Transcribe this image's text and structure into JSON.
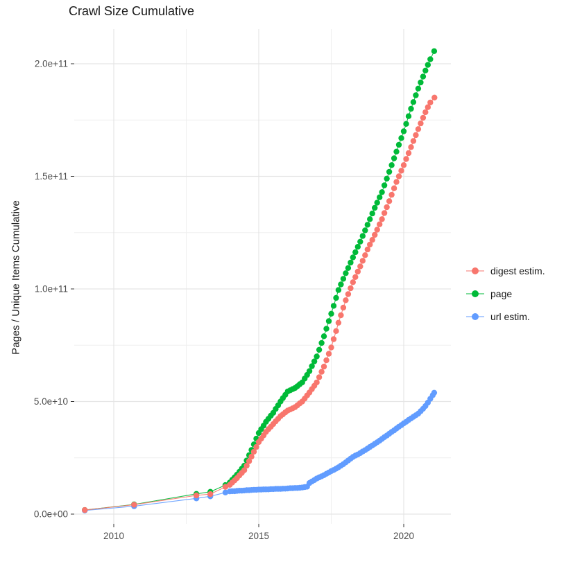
{
  "title": "Crawl Size Cumulative",
  "axes": {
    "y_title": "Pages / Unique Items Cumulative",
    "y_ticks": [
      {
        "label": "0.0e+00",
        "value": 0
      },
      {
        "label": "5.0e+10",
        "value": 50
      },
      {
        "label": "1.0e+11",
        "value": 100
      },
      {
        "label": "1.5e+11",
        "value": 150
      },
      {
        "label": "2.0e+11",
        "value": 200
      }
    ],
    "y_minor": [
      25,
      75,
      125,
      175
    ],
    "x_ticks": [
      {
        "label": "2010",
        "value": 2010
      },
      {
        "label": "2015",
        "value": 2015
      },
      {
        "label": "2020",
        "value": 2020
      }
    ],
    "x_minor": [
      2012.5,
      2017.5
    ]
  },
  "colors": {
    "digest": "#F8766D",
    "page": "#00BA38",
    "url": "#619CFF",
    "grid_major": "#E5E5E5",
    "grid_minor": "#EFEFEF",
    "tick": "#333333",
    "axis_text": "#4D4D4D"
  },
  "chart_data": {
    "type": "scatter",
    "title": "Crawl Size Cumulative",
    "xlabel": "",
    "ylabel": "Pages / Unique Items Cumulative",
    "x_unit": "year (decimal)",
    "y_unit": "count; stored values are billions (multiply by 1e9)",
    "xlim": [
      2008.6,
      2021.6
    ],
    "ylim": [
      0,
      215000000000.0
    ],
    "grid": true,
    "legend_position": "right",
    "point_style": "dot-with-thin-line",
    "series": [
      {
        "name": "digest estim.",
        "color": "#F8766D",
        "points": [
          [
            2009.0,
            1.8
          ],
          [
            2010.7,
            4.2
          ],
          [
            2012.85,
            8.3
          ],
          [
            2013.33,
            8.9
          ],
          [
            2013.85,
            12.1
          ],
          [
            2014.0,
            13.0
          ],
          [
            2014.083,
            14.0
          ],
          [
            2014.167,
            15.0
          ],
          [
            2014.25,
            16.0
          ],
          [
            2014.333,
            17.2
          ],
          [
            2014.417,
            18.3
          ],
          [
            2014.5,
            19.5
          ],
          [
            2014.583,
            21.5
          ],
          [
            2014.667,
            23.5
          ],
          [
            2014.75,
            25.5
          ],
          [
            2014.833,
            27.7
          ],
          [
            2014.917,
            29.8
          ],
          [
            2015.0,
            32.0
          ],
          [
            2015.083,
            33.5
          ],
          [
            2015.167,
            35.0
          ],
          [
            2015.25,
            36.5
          ],
          [
            2015.333,
            37.7
          ],
          [
            2015.417,
            38.8
          ],
          [
            2015.5,
            40.0
          ],
          [
            2015.583,
            41.2
          ],
          [
            2015.667,
            42.3
          ],
          [
            2015.75,
            43.5
          ],
          [
            2015.833,
            44.3
          ],
          [
            2015.917,
            45.2
          ],
          [
            2016.0,
            46.0
          ],
          [
            2016.083,
            46.5
          ],
          [
            2016.167,
            47.0
          ],
          [
            2016.25,
            47.5
          ],
          [
            2016.333,
            48.3
          ],
          [
            2016.417,
            49.2
          ],
          [
            2016.5,
            50.0
          ],
          [
            2016.583,
            51.3
          ],
          [
            2016.667,
            52.7
          ],
          [
            2016.75,
            54.0
          ],
          [
            2016.833,
            55.5
          ],
          [
            2016.917,
            57.0
          ],
          [
            2017.0,
            58.5
          ],
          [
            2017.083,
            60.8
          ],
          [
            2017.167,
            63.2
          ],
          [
            2017.25,
            65.5
          ],
          [
            2017.333,
            68.3
          ],
          [
            2017.417,
            71.2
          ],
          [
            2017.5,
            74.0
          ],
          [
            2017.583,
            77.7
          ],
          [
            2017.667,
            81.3
          ],
          [
            2017.75,
            85.0
          ],
          [
            2017.833,
            88.3
          ],
          [
            2017.917,
            91.7
          ],
          [
            2018.0,
            95.0
          ],
          [
            2018.083,
            97.7
          ],
          [
            2018.167,
            100.3
          ],
          [
            2018.25,
            103.0
          ],
          [
            2018.333,
            105.3
          ],
          [
            2018.417,
            107.7
          ],
          [
            2018.5,
            110.0
          ],
          [
            2018.583,
            112.5
          ],
          [
            2018.667,
            115.0
          ],
          [
            2018.75,
            117.5
          ],
          [
            2018.833,
            119.7
          ],
          [
            2018.917,
            121.8
          ],
          [
            2019.0,
            124.0
          ],
          [
            2019.083,
            126.3
          ],
          [
            2019.167,
            128.7
          ],
          [
            2019.25,
            131.0
          ],
          [
            2019.333,
            133.7
          ],
          [
            2019.417,
            136.3
          ],
          [
            2019.5,
            139.0
          ],
          [
            2019.583,
            141.8
          ],
          [
            2019.667,
            144.7
          ],
          [
            2019.75,
            147.5
          ],
          [
            2019.833,
            150.0
          ],
          [
            2019.917,
            152.5
          ],
          [
            2020.0,
            155.0
          ],
          [
            2020.083,
            157.7
          ],
          [
            2020.167,
            160.3
          ],
          [
            2020.25,
            163.0
          ],
          [
            2020.333,
            165.7
          ],
          [
            2020.417,
            168.3
          ],
          [
            2020.5,
            171.0
          ],
          [
            2020.583,
            173.5
          ],
          [
            2020.667,
            176.0
          ],
          [
            2020.75,
            178.5
          ],
          [
            2020.833,
            180.7
          ],
          [
            2020.917,
            182.8
          ],
          [
            2021.06,
            185.0
          ]
        ]
      },
      {
        "name": "page",
        "color": "#00BA38",
        "points": [
          [
            2009.0,
            1.8
          ],
          [
            2010.7,
            4.3
          ],
          [
            2012.85,
            9.0
          ],
          [
            2013.33,
            9.9
          ],
          [
            2013.85,
            12.9
          ],
          [
            2014.0,
            14.0
          ],
          [
            2014.083,
            15.2
          ],
          [
            2014.167,
            16.3
          ],
          [
            2014.25,
            17.5
          ],
          [
            2014.333,
            18.8
          ],
          [
            2014.417,
            20.2
          ],
          [
            2014.5,
            21.5
          ],
          [
            2014.583,
            23.8
          ],
          [
            2014.667,
            26.2
          ],
          [
            2014.75,
            28.5
          ],
          [
            2014.833,
            31.0
          ],
          [
            2014.917,
            33.5
          ],
          [
            2015.0,
            36.0
          ],
          [
            2015.083,
            37.7
          ],
          [
            2015.167,
            39.3
          ],
          [
            2015.25,
            41.0
          ],
          [
            2015.333,
            42.3
          ],
          [
            2015.417,
            43.7
          ],
          [
            2015.5,
            45.0
          ],
          [
            2015.583,
            46.7
          ],
          [
            2015.667,
            48.3
          ],
          [
            2015.75,
            50.0
          ],
          [
            2015.833,
            51.5
          ],
          [
            2015.917,
            53.0
          ],
          [
            2016.0,
            54.5
          ],
          [
            2016.083,
            55.0
          ],
          [
            2016.167,
            55.5
          ],
          [
            2016.25,
            56.0
          ],
          [
            2016.333,
            56.8
          ],
          [
            2016.417,
            57.7
          ],
          [
            2016.5,
            58.5
          ],
          [
            2016.583,
            60.2
          ],
          [
            2016.667,
            61.8
          ],
          [
            2016.75,
            63.5
          ],
          [
            2016.833,
            65.7
          ],
          [
            2016.917,
            67.8
          ],
          [
            2017.0,
            70.0
          ],
          [
            2017.083,
            73.0
          ],
          [
            2017.167,
            76.0
          ],
          [
            2017.25,
            79.0
          ],
          [
            2017.333,
            82.3
          ],
          [
            2017.417,
            85.7
          ],
          [
            2017.5,
            89.0
          ],
          [
            2017.583,
            92.5
          ],
          [
            2017.667,
            96.0
          ],
          [
            2017.75,
            99.5
          ],
          [
            2017.833,
            102.0
          ],
          [
            2017.917,
            104.5
          ],
          [
            2018.0,
            107.0
          ],
          [
            2018.083,
            109.3
          ],
          [
            2018.167,
            111.7
          ],
          [
            2018.25,
            114.0
          ],
          [
            2018.333,
            116.3
          ],
          [
            2018.417,
            118.7
          ],
          [
            2018.5,
            121.0
          ],
          [
            2018.583,
            123.5
          ],
          [
            2018.667,
            126.0
          ],
          [
            2018.75,
            128.5
          ],
          [
            2018.833,
            131.0
          ],
          [
            2018.917,
            133.5
          ],
          [
            2019.0,
            136.0
          ],
          [
            2019.083,
            138.3
          ],
          [
            2019.167,
            140.7
          ],
          [
            2019.25,
            143.0
          ],
          [
            2019.333,
            146.0
          ],
          [
            2019.417,
            149.0
          ],
          [
            2019.5,
            152.0
          ],
          [
            2019.583,
            155.0
          ],
          [
            2019.667,
            158.0
          ],
          [
            2019.75,
            161.0
          ],
          [
            2019.833,
            164.0
          ],
          [
            2019.917,
            167.0
          ],
          [
            2020.0,
            170.0
          ],
          [
            2020.083,
            173.3
          ],
          [
            2020.167,
            176.7
          ],
          [
            2020.25,
            180.0
          ],
          [
            2020.333,
            183.0
          ],
          [
            2020.417,
            186.0
          ],
          [
            2020.5,
            189.0
          ],
          [
            2020.583,
            191.7
          ],
          [
            2020.667,
            194.3
          ],
          [
            2020.75,
            197.0
          ],
          [
            2020.833,
            199.5
          ],
          [
            2020.917,
            202.0
          ],
          [
            2021.05,
            205.6
          ]
        ]
      },
      {
        "name": "url estim.",
        "color": "#619CFF",
        "points": [
          [
            2009.0,
            1.6
          ],
          [
            2010.7,
            3.5
          ],
          [
            2012.85,
            7.0
          ],
          [
            2013.33,
            7.9
          ],
          [
            2013.85,
            9.6
          ],
          [
            2014.0,
            10.1
          ],
          [
            2014.083,
            10.2
          ],
          [
            2014.167,
            10.2
          ],
          [
            2014.25,
            10.3
          ],
          [
            2014.333,
            10.4
          ],
          [
            2014.417,
            10.4
          ],
          [
            2014.5,
            10.5
          ],
          [
            2014.583,
            10.6
          ],
          [
            2014.667,
            10.6
          ],
          [
            2014.75,
            10.7
          ],
          [
            2014.833,
            10.8
          ],
          [
            2014.917,
            10.8
          ],
          [
            2015.0,
            10.9
          ],
          [
            2015.083,
            10.9
          ],
          [
            2015.167,
            11.0
          ],
          [
            2015.25,
            11.0
          ],
          [
            2015.333,
            11.0
          ],
          [
            2015.417,
            11.1
          ],
          [
            2015.5,
            11.1
          ],
          [
            2015.583,
            11.2
          ],
          [
            2015.667,
            11.2
          ],
          [
            2015.75,
            11.2
          ],
          [
            2015.833,
            11.3
          ],
          [
            2015.917,
            11.3
          ],
          [
            2016.0,
            11.4
          ],
          [
            2016.083,
            11.5
          ],
          [
            2016.167,
            11.5
          ],
          [
            2016.25,
            11.6
          ],
          [
            2016.333,
            11.6
          ],
          [
            2016.417,
            11.7
          ],
          [
            2016.5,
            11.8
          ],
          [
            2016.583,
            12.0
          ],
          [
            2016.667,
            12.2
          ],
          [
            2016.75,
            13.8
          ],
          [
            2016.833,
            14.5
          ],
          [
            2016.917,
            15.1
          ],
          [
            2017.0,
            15.8
          ],
          [
            2017.083,
            16.3
          ],
          [
            2017.167,
            16.8
          ],
          [
            2017.25,
            17.3
          ],
          [
            2017.333,
            17.9
          ],
          [
            2017.417,
            18.5
          ],
          [
            2017.5,
            19.1
          ],
          [
            2017.583,
            19.6
          ],
          [
            2017.667,
            20.2
          ],
          [
            2017.75,
            20.8
          ],
          [
            2017.833,
            21.5
          ],
          [
            2017.917,
            22.2
          ],
          [
            2018.0,
            23.0
          ],
          [
            2018.083,
            23.8
          ],
          [
            2018.167,
            24.6
          ],
          [
            2018.25,
            25.4
          ],
          [
            2018.333,
            26.0
          ],
          [
            2018.417,
            26.5
          ],
          [
            2018.5,
            27.1
          ],
          [
            2018.583,
            27.8
          ],
          [
            2018.667,
            28.4
          ],
          [
            2018.75,
            29.1
          ],
          [
            2018.833,
            29.8
          ],
          [
            2018.917,
            30.5
          ],
          [
            2019.0,
            31.2
          ],
          [
            2019.083,
            31.9
          ],
          [
            2019.167,
            32.6
          ],
          [
            2019.25,
            33.4
          ],
          [
            2019.333,
            34.2
          ],
          [
            2019.417,
            34.9
          ],
          [
            2019.5,
            35.7
          ],
          [
            2019.583,
            36.5
          ],
          [
            2019.667,
            37.2
          ],
          [
            2019.75,
            38.0
          ],
          [
            2019.833,
            38.8
          ],
          [
            2019.917,
            39.5
          ],
          [
            2020.0,
            40.3
          ],
          [
            2020.083,
            41.0
          ],
          [
            2020.167,
            41.8
          ],
          [
            2020.25,
            42.5
          ],
          [
            2020.333,
            43.2
          ],
          [
            2020.417,
            43.9
          ],
          [
            2020.5,
            44.6
          ],
          [
            2020.583,
            45.7
          ],
          [
            2020.667,
            46.8
          ],
          [
            2020.75,
            48.0
          ],
          [
            2020.833,
            49.5
          ],
          [
            2020.917,
            51.2
          ],
          [
            2021.0,
            52.8
          ],
          [
            2021.05,
            53.9
          ]
        ]
      }
    ]
  },
  "legend": {
    "items": [
      {
        "label": "digest estim."
      },
      {
        "label": "page"
      },
      {
        "label": "url estim."
      }
    ]
  }
}
